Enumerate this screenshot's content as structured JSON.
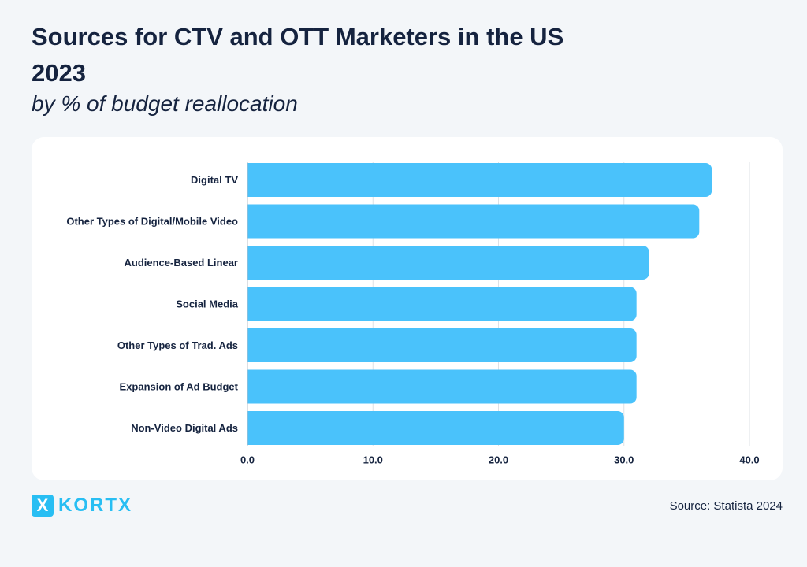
{
  "header": {
    "title_line1": "Sources for CTV and OTT Marketers in the US",
    "title_line2": "2023",
    "subtitle": "by % of budget reallocation"
  },
  "chart_data": {
    "type": "bar",
    "orientation": "horizontal",
    "title": "Sources for CTV and OTT Marketers in the US 2023",
    "subtitle": "by % of budget reallocation",
    "categories": [
      "Digital TV",
      "Other Types of Digital/Mobile Video",
      "Audience-Based Linear",
      "Social Media",
      "Other Types of Trad. Ads",
      "Expansion of Ad Budget",
      "Non-Video Digital Ads"
    ],
    "values": [
      37,
      36,
      32,
      31,
      31,
      31,
      30
    ],
    "xlim": [
      0,
      40
    ],
    "xticks": [
      0,
      10,
      20,
      30,
      40
    ],
    "xtick_labels": [
      "0.0",
      "10.0",
      "20.0",
      "30.0",
      "40.0"
    ],
    "xlabel": "",
    "ylabel": "",
    "grid": true,
    "bar_color": "#4ac2fb"
  },
  "footer": {
    "logo_mark": "X",
    "logo_text": "KORTX",
    "source": "Source: Statista 2024"
  },
  "colors": {
    "background": "#f3f6f9",
    "card": "#ffffff",
    "text": "#15233f",
    "brand": "#28bef3",
    "bar": "#4ac2fb",
    "grid": "#dde1e6"
  }
}
